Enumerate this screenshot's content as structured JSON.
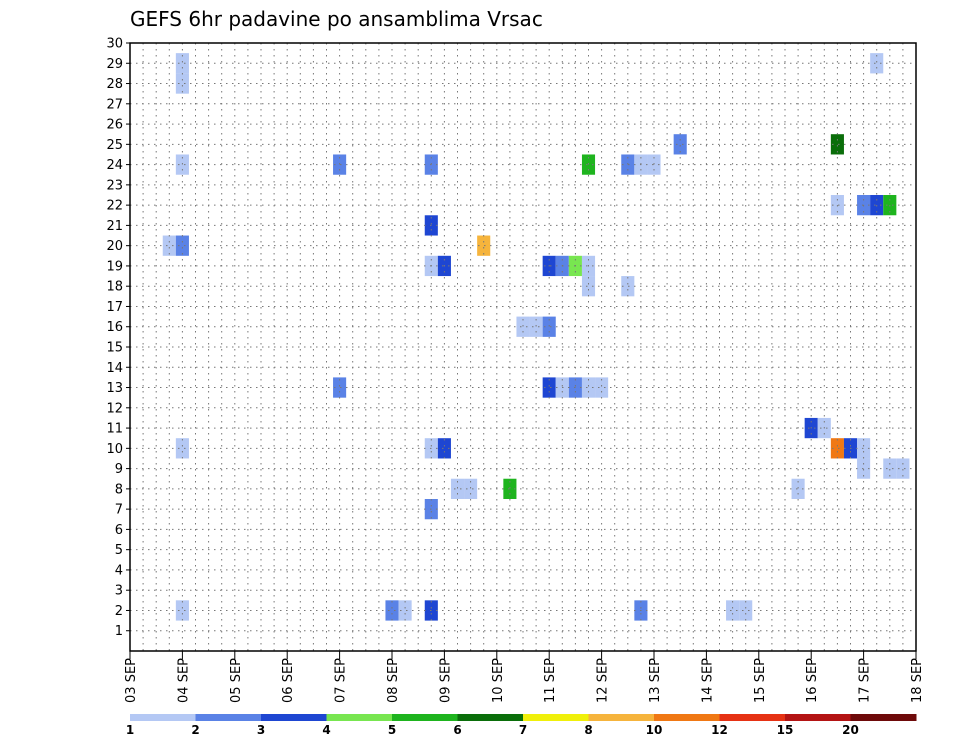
{
  "chart_data": {
    "type": "heatmap",
    "title": "GEFS 6hr padavine po ansamblima Vrsac",
    "x_tick_labels": [
      "03 SEP",
      "04 SEP",
      "05 SEP",
      "06 SEP",
      "07 SEP",
      "08 SEP",
      "09 SEP",
      "10 SEP",
      "11 SEP",
      "12 SEP",
      "13 SEP",
      "14 SEP",
      "15 SEP",
      "16 SEP",
      "17 SEP",
      "18 SEP"
    ],
    "y_tick_labels": [
      "1",
      "2",
      "3",
      "4",
      "5",
      "6",
      "7",
      "8",
      "9",
      "10",
      "11",
      "12",
      "13",
      "14",
      "15",
      "16",
      "17",
      "18",
      "19",
      "20",
      "21",
      "22",
      "23",
      "24",
      "25",
      "26",
      "27",
      "28",
      "29",
      "30"
    ],
    "ylim": [
      0,
      30
    ],
    "grid": true,
    "colorbar": {
      "labels": [
        "1",
        "2",
        "3",
        "4",
        "5",
        "6",
        "7",
        "8",
        "10",
        "12",
        "15",
        "20"
      ],
      "colors": [
        "#b4c8f4",
        "#5a82e6",
        "#1e46d2",
        "#78e650",
        "#1eb41e",
        "#0a6e0a",
        "#f0f00a",
        "#f6b43c",
        "#f07814",
        "#e63214",
        "#b41414",
        "#6e0a0a"
      ]
    },
    "cells": [
      {
        "time": "04 SEP 00Z",
        "member": 28,
        "class": 1
      },
      {
        "time": "04 SEP 00Z",
        "member": 29,
        "class": 1
      },
      {
        "time": "04 SEP 00Z",
        "member": 24,
        "class": 1
      },
      {
        "time": "03 SEP 18Z",
        "member": 20,
        "class": 1
      },
      {
        "time": "04 SEP 00Z",
        "member": 20,
        "class": 2
      },
      {
        "time": "04 SEP 00Z",
        "member": 10,
        "class": 1
      },
      {
        "time": "04 SEP 00Z",
        "member": 2,
        "class": 1
      },
      {
        "time": "07 SEP 00Z",
        "member": 24,
        "class": 2
      },
      {
        "time": "07 SEP 00Z",
        "member": 13,
        "class": 2
      },
      {
        "time": "08 SEP 00Z",
        "member": 2,
        "class": 2
      },
      {
        "time": "08 SEP 06Z",
        "member": 2,
        "class": 1
      },
      {
        "time": "08 SEP 18Z",
        "member": 24,
        "class": 2
      },
      {
        "time": "08 SEP 18Z",
        "member": 21,
        "class": 3
      },
      {
        "time": "08 SEP 18Z",
        "member": 19,
        "class": 1
      },
      {
        "time": "09 SEP 00Z",
        "member": 19,
        "class": 3
      },
      {
        "time": "08 SEP 18Z",
        "member": 10,
        "class": 1
      },
      {
        "time": "09 SEP 00Z",
        "member": 10,
        "class": 3
      },
      {
        "time": "08 SEP 18Z",
        "member": 7,
        "class": 2
      },
      {
        "time": "08 SEP 18Z",
        "member": 2,
        "class": 3
      },
      {
        "time": "09 SEP 06Z",
        "member": 8,
        "class": 1
      },
      {
        "time": "09 SEP 12Z",
        "member": 8,
        "class": 1
      },
      {
        "time": "09 SEP 18Z",
        "member": 20,
        "class": 8
      },
      {
        "time": "10 SEP 06Z",
        "member": 8,
        "class": 5
      },
      {
        "time": "10 SEP 12Z",
        "member": 16,
        "class": 1
      },
      {
        "time": "10 SEP 18Z",
        "member": 16,
        "class": 1
      },
      {
        "time": "11 SEP 00Z",
        "member": 16,
        "class": 2
      },
      {
        "time": "11 SEP 00Z",
        "member": 19,
        "class": 3
      },
      {
        "time": "11 SEP 06Z",
        "member": 19,
        "class": 2
      },
      {
        "time": "11 SEP 12Z",
        "member": 19,
        "class": 4
      },
      {
        "time": "11 SEP 18Z",
        "member": 19,
        "class": 1
      },
      {
        "time": "11 SEP 18Z",
        "member": 18,
        "class": 1
      },
      {
        "time": "12 SEP 12Z",
        "member": 18,
        "class": 1
      },
      {
        "time": "11 SEP 00Z",
        "member": 13,
        "class": 3
      },
      {
        "time": "11 SEP 06Z",
        "member": 13,
        "class": 1
      },
      {
        "time": "11 SEP 12Z",
        "member": 13,
        "class": 2
      },
      {
        "time": "11 SEP 18Z",
        "member": 13,
        "class": 1
      },
      {
        "time": "12 SEP 00Z",
        "member": 13,
        "class": 1
      },
      {
        "time": "11 SEP 18Z",
        "member": 24,
        "class": 5
      },
      {
        "time": "12 SEP 12Z",
        "member": 24,
        "class": 2
      },
      {
        "time": "12 SEP 18Z",
        "member": 24,
        "class": 1
      },
      {
        "time": "13 SEP 00Z",
        "member": 24,
        "class": 1
      },
      {
        "time": "13 SEP 12Z",
        "member": 25,
        "class": 2
      },
      {
        "time": "12 SEP 18Z",
        "member": 2,
        "class": 2
      },
      {
        "time": "14 SEP 12Z",
        "member": 2,
        "class": 1
      },
      {
        "time": "14 SEP 18Z",
        "member": 2,
        "class": 1
      },
      {
        "time": "15 SEP 18Z",
        "member": 8,
        "class": 1
      },
      {
        "time": "16 SEP 00Z",
        "member": 11,
        "class": 3
      },
      {
        "time": "16 SEP 06Z",
        "member": 11,
        "class": 1
      },
      {
        "time": "16 SEP 12Z",
        "member": 25,
        "class": 6
      },
      {
        "time": "16 SEP 12Z",
        "member": 22,
        "class": 1
      },
      {
        "time": "16 SEP 12Z",
        "member": 10,
        "class": 9
      },
      {
        "time": "16 SEP 18Z",
        "member": 10,
        "class": 3
      },
      {
        "time": "17 SEP 00Z",
        "member": 10,
        "class": 1
      },
      {
        "time": "17 SEP 00Z",
        "member": 9,
        "class": 1
      },
      {
        "time": "17 SEP 00Z",
        "member": 22,
        "class": 2
      },
      {
        "time": "17 SEP 06Z",
        "member": 22,
        "class": 3
      },
      {
        "time": "17 SEP 12Z",
        "member": 22,
        "class": 5
      },
      {
        "time": "17 SEP 06Z",
        "member": 29,
        "class": 1
      },
      {
        "time": "17 SEP 12Z",
        "member": 9,
        "class": 1
      },
      {
        "time": "17 SEP 18Z",
        "member": 9,
        "class": 1
      }
    ]
  }
}
